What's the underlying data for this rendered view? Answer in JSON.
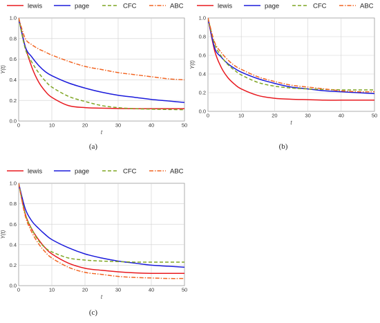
{
  "legend": [
    "lewis",
    "page",
    "CFC",
    "ABC"
  ],
  "chart_data": [
    {
      "type": "line",
      "caption": "(a)",
      "xlabel": "t",
      "ylabel": "Y(t)",
      "xlim": [
        0,
        50
      ],
      "ylim": [
        0,
        1.0
      ],
      "xticks": [
        "0",
        "10",
        "20",
        "30",
        "40",
        "50"
      ],
      "yticks": [
        "0.0",
        "0.2",
        "0.4",
        "0.6",
        "0.8",
        "1.0"
      ],
      "grid": true,
      "legend_position": "top",
      "x": [
        0,
        2,
        4,
        6,
        8,
        10,
        15,
        20,
        25,
        30,
        35,
        40,
        45,
        50
      ],
      "series": [
        {
          "name": "lewis",
          "color": "#e8191f",
          "dash": "solid",
          "values": [
            1.0,
            0.72,
            0.52,
            0.38,
            0.29,
            0.23,
            0.15,
            0.13,
            0.125,
            0.122,
            0.12,
            0.12,
            0.12,
            0.12
          ]
        },
        {
          "name": "page",
          "color": "#1a1adb",
          "dash": "solid",
          "values": [
            1.0,
            0.72,
            0.62,
            0.54,
            0.48,
            0.44,
            0.37,
            0.32,
            0.28,
            0.25,
            0.23,
            0.21,
            0.195,
            0.18
          ]
        },
        {
          "name": "CFC",
          "color": "#7fa523",
          "dash": "dash",
          "values": [
            1.0,
            0.7,
            0.57,
            0.47,
            0.39,
            0.33,
            0.24,
            0.19,
            0.15,
            0.13,
            0.12,
            0.115,
            0.112,
            0.11
          ]
        },
        {
          "name": "ABC",
          "color": "#f26522",
          "dash": "dashdot",
          "values": [
            1.0,
            0.8,
            0.74,
            0.7,
            0.67,
            0.64,
            0.58,
            0.53,
            0.5,
            0.47,
            0.45,
            0.43,
            0.41,
            0.4
          ]
        }
      ]
    },
    {
      "type": "line",
      "caption": "(b)",
      "xlabel": "t",
      "ylabel": "Y(t)",
      "xlim": [
        0,
        50
      ],
      "ylim": [
        0,
        1.0
      ],
      "xticks": [
        "0",
        "10",
        "20",
        "30",
        "40",
        "50"
      ],
      "yticks": [
        "0.0",
        "0.2",
        "0.4",
        "0.6",
        "0.8",
        "1.0"
      ],
      "grid": true,
      "legend_position": "top",
      "x": [
        0,
        2,
        4,
        6,
        8,
        10,
        15,
        20,
        25,
        30,
        35,
        40,
        45,
        50
      ],
      "series": [
        {
          "name": "lewis",
          "color": "#e8191f",
          "dash": "solid",
          "values": [
            1.0,
            0.65,
            0.47,
            0.36,
            0.29,
            0.24,
            0.17,
            0.14,
            0.13,
            0.125,
            0.12,
            0.12,
            0.12,
            0.12
          ]
        },
        {
          "name": "page",
          "color": "#1a1adb",
          "dash": "solid",
          "values": [
            1.0,
            0.68,
            0.58,
            0.51,
            0.46,
            0.42,
            0.35,
            0.3,
            0.26,
            0.24,
            0.22,
            0.21,
            0.2,
            0.19
          ]
        },
        {
          "name": "CFC",
          "color": "#7fa523",
          "dash": "dash",
          "values": [
            1.0,
            0.72,
            0.59,
            0.5,
            0.44,
            0.39,
            0.31,
            0.27,
            0.25,
            0.24,
            0.235,
            0.23,
            0.23,
            0.23
          ]
        },
        {
          "name": "ABC",
          "color": "#f26522",
          "dash": "dashdot",
          "values": [
            1.0,
            0.74,
            0.63,
            0.55,
            0.49,
            0.45,
            0.37,
            0.32,
            0.28,
            0.26,
            0.24,
            0.22,
            0.21,
            0.21
          ]
        }
      ]
    },
    {
      "type": "line",
      "caption": "(c)",
      "xlabel": "t",
      "ylabel": "Y(t)",
      "xlim": [
        0,
        50
      ],
      "ylim": [
        0,
        1.0
      ],
      "xticks": [
        "0",
        "10",
        "20",
        "30",
        "40",
        "50"
      ],
      "yticks": [
        "0.0",
        "0.2",
        "0.4",
        "0.6",
        "0.8",
        "1.0"
      ],
      "grid": true,
      "legend_position": "top",
      "x": [
        0,
        2,
        4,
        6,
        8,
        10,
        15,
        20,
        25,
        30,
        35,
        40,
        45,
        50
      ],
      "series": [
        {
          "name": "lewis",
          "color": "#e8191f",
          "dash": "solid",
          "values": [
            1.0,
            0.7,
            0.55,
            0.45,
            0.37,
            0.31,
            0.22,
            0.17,
            0.15,
            0.135,
            0.125,
            0.12,
            0.12,
            0.12
          ]
        },
        {
          "name": "page",
          "color": "#1a1adb",
          "dash": "solid",
          "values": [
            1.0,
            0.75,
            0.63,
            0.56,
            0.5,
            0.45,
            0.37,
            0.31,
            0.27,
            0.24,
            0.22,
            0.2,
            0.19,
            0.18
          ]
        },
        {
          "name": "CFC",
          "color": "#7fa523",
          "dash": "dash",
          "values": [
            1.0,
            0.7,
            0.55,
            0.44,
            0.37,
            0.33,
            0.27,
            0.25,
            0.24,
            0.235,
            0.23,
            0.23,
            0.23,
            0.23
          ]
        },
        {
          "name": "ABC",
          "color": "#f26522",
          "dash": "dashdot",
          "values": [
            1.0,
            0.68,
            0.52,
            0.41,
            0.33,
            0.27,
            0.18,
            0.13,
            0.11,
            0.09,
            0.08,
            0.075,
            0.07,
            0.07
          ]
        }
      ]
    }
  ]
}
